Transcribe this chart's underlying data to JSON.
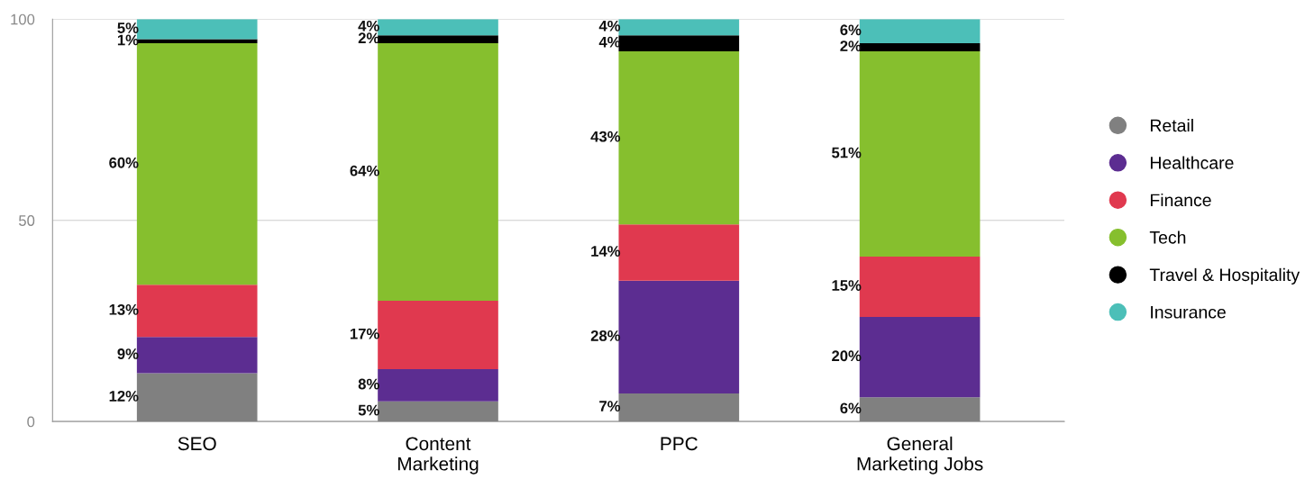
{
  "chart_data": {
    "type": "bar",
    "stacked": true,
    "categories": [
      "SEO",
      "Content\nMarketing",
      "PPC",
      "General\nMarketing Jobs"
    ],
    "series": [
      {
        "name": "Retail",
        "color": "#808080",
        "values": [
          12,
          5,
          7,
          6
        ],
        "value_labels": [
          "12%",
          "5%",
          "7%",
          "6%"
        ]
      },
      {
        "name": "Healthcare",
        "color": "#5c2d91",
        "values": [
          9,
          8,
          28,
          20
        ],
        "value_labels": [
          "9%",
          "8%",
          "28%",
          "20%"
        ]
      },
      {
        "name": "Finance",
        "color": "#e0394f",
        "values": [
          13,
          17,
          14,
          15
        ],
        "value_labels": [
          "13%",
          "17%",
          "14%",
          "15%"
        ]
      },
      {
        "name": "Tech",
        "color": "#86bf2e",
        "values": [
          60,
          64,
          43,
          51
        ],
        "value_labels": [
          "60%",
          "64%",
          "43%",
          "51%"
        ]
      },
      {
        "name": "Travel & Hospitality",
        "color": "#000000",
        "values": [
          1,
          2,
          4,
          2
        ],
        "value_labels": [
          "1%",
          "2%",
          "4%",
          "2%"
        ]
      },
      {
        "name": "Insurance",
        "color": "#4cbfb8",
        "values": [
          5,
          4,
          4,
          6
        ],
        "value_labels": [
          "5%",
          "4%",
          "4%",
          "6%"
        ]
      }
    ],
    "ylim": [
      0,
      100
    ],
    "yticks": [
      0,
      50,
      100
    ],
    "grid": "y",
    "legend": "right",
    "marker": "circle"
  }
}
